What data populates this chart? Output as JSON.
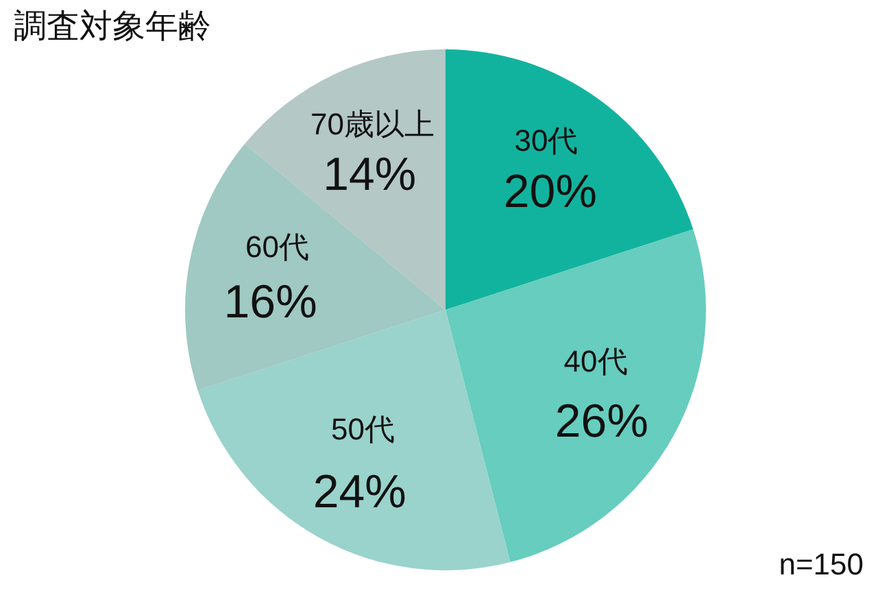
{
  "chart_data": {
    "type": "pie",
    "title": "調査対象年齢",
    "categories": [
      "30代",
      "40代",
      "50代",
      "60代",
      "70歳以上"
    ],
    "values": [
      20,
      26,
      24,
      16,
      14
    ],
    "value_labels": [
      "20%",
      "26%",
      "24%",
      "16%",
      "14%"
    ],
    "colors": [
      "#12b39e",
      "#66cdbf",
      "#99d3cb",
      "#9fc9c2",
      "#b4c8c6"
    ],
    "annotations": [
      "n=150"
    ]
  }
}
